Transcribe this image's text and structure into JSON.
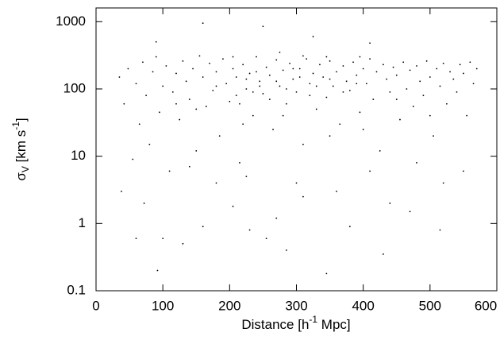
{
  "chart_data": {
    "type": "scatter",
    "xlabel": [
      "Distance [h",
      "-1",
      " Mpc]"
    ],
    "ylabel": [
      "σ",
      "V",
      " [km s",
      "-1",
      "]"
    ],
    "xlim": [
      0,
      600
    ],
    "xticks": [
      0,
      100,
      200,
      300,
      400,
      500,
      600
    ],
    "ylim": [
      0.1,
      1600
    ],
    "yticks": [
      1000,
      100,
      10,
      1,
      0.1
    ],
    "log_y": true,
    "color": "#000000",
    "x": [
      35,
      42,
      48,
      55,
      60,
      65,
      70,
      75,
      80,
      85,
      90,
      95,
      100,
      105,
      110,
      115,
      120,
      125,
      130,
      135,
      140,
      145,
      150,
      155,
      160,
      165,
      170,
      175,
      180,
      185,
      190,
      195,
      200,
      205,
      210,
      215,
      220,
      225,
      230,
      235,
      240,
      245,
      250,
      255,
      260,
      265,
      270,
      275,
      280,
      285,
      290,
      295,
      300,
      305,
      310,
      315,
      320,
      325,
      330,
      335,
      340,
      345,
      350,
      355,
      360,
      365,
      370,
      375,
      380,
      385,
      390,
      395,
      400,
      405,
      410,
      415,
      420,
      425,
      430,
      435,
      440,
      445,
      450,
      455,
      460,
      465,
      470,
      475,
      480,
      485,
      490,
      495,
      500,
      505,
      510,
      515,
      520,
      525,
      530,
      535,
      540,
      545,
      550,
      555,
      560,
      565,
      570,
      38,
      72,
      92,
      130,
      160,
      205,
      230,
      255,
      270,
      310,
      345,
      380,
      430,
      470,
      520,
      250,
      160,
      325,
      90,
      410,
      225,
      300,
      360,
      410,
      180,
      140,
      480,
      550,
      60,
      100,
      285,
      440,
      515,
      210,
      215,
      225,
      235,
      245,
      260,
      270,
      285,
      295,
      305,
      320,
      330,
      350,
      370,
      390,
      205,
      240,
      275,
      310,
      345,
      395,
      280,
      220,
      350,
      400,
      150,
      120,
      180,
      450,
      500
    ],
    "values": [
      150,
      60,
      200,
      9,
      120,
      30,
      250,
      80,
      15,
      180,
      300,
      45,
      110,
      220,
      6,
      90,
      170,
      35,
      260,
      130,
      70,
      200,
      12,
      310,
      150,
      55,
      240,
      95,
      180,
      20,
      280,
      120,
      65,
      200,
      150,
      8,
      230,
      100,
      170,
      40,
      300,
      130,
      85,
      210,
      160,
      25,
      270,
      110,
      190,
      60,
      240,
      140,
      90,
      200,
      15,
      280,
      120,
      170,
      50,
      230,
      150,
      75,
      260,
      110,
      180,
      30,
      220,
      130,
      95,
      250,
      160,
      45,
      200,
      120,
      280,
      70,
      180,
      12,
      230,
      140,
      90,
      210,
      160,
      35,
      250,
      100,
      190,
      55,
      220,
      130,
      80,
      260,
      150,
      20,
      200,
      110,
      240,
      60,
      180,
      140,
      90,
      230,
      170,
      40,
      250,
      120,
      200,
      3,
      2,
      0.2,
      0.5,
      0.9,
      1.8,
      0.8,
      0.6,
      1.2,
      2.5,
      0.18,
      0.9,
      0.35,
      1.5,
      4,
      850,
      950,
      600,
      500,
      480,
      5,
      4,
      3,
      6,
      4,
      7,
      8,
      6,
      0.6,
      0.6,
      0.4,
      2,
      0.8,
      80,
      60,
      140,
      90,
      110,
      70,
      130,
      100,
      200,
      150,
      80,
      110,
      140,
      90,
      120,
      300,
      180,
      350,
      310,
      300,
      300,
      40,
      30,
      20,
      25,
      50,
      60,
      110,
      70,
      40
    ]
  }
}
